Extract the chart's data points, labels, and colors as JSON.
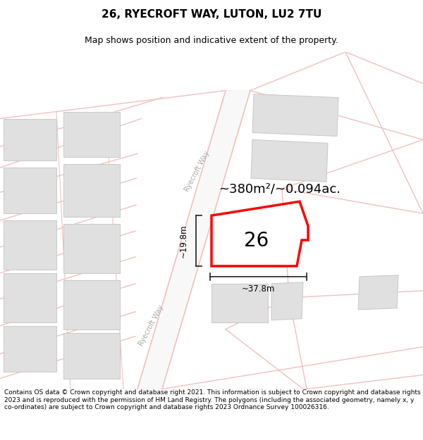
{
  "title": "26, RYECROFT WAY, LUTON, LU2 7TU",
  "subtitle": "Map shows position and indicative extent of the property.",
  "footer": "Contains OS data © Crown copyright and database right 2021. This information is subject to Crown copyright and database rights 2023 and is reproduced with the permission of HM Land Registry. The polygons (including the associated geometry, namely x, y co-ordinates) are subject to Crown copyright and database rights 2023 Ordnance Survey 100026316.",
  "area_text": "~380m²/~0.094ac.",
  "label_26": "26",
  "dim_width": "~37.8m",
  "dim_height": "~19.8m",
  "street_label": "Ryecroft Way",
  "bg_color": "#ffffff",
  "map_bg": "#ffffff",
  "road_color": "#f2c0c0",
  "building_color": "#e0e0e0",
  "building_edge": "#c8c8c8",
  "highlight_color": "#ff0000",
  "highlight_fill": "#ffffff",
  "dim_color": "#222222",
  "title_fontsize": 11,
  "subtitle_fontsize": 9,
  "footer_fontsize": 6.5
}
